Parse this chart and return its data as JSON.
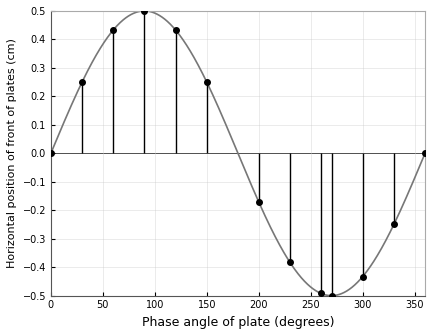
{
  "title": "",
  "xlabel": "Phase angle of plate (degrees)",
  "ylabel": "Horizontal position of front of plates (cm)",
  "amplitude": 0.5,
  "xlim": [
    0,
    360
  ],
  "ylim": [
    -0.5,
    0.5
  ],
  "xticks": [
    0,
    50,
    100,
    150,
    200,
    250,
    300,
    350
  ],
  "yticks": [
    -0.5,
    -0.4,
    -0.3,
    -0.2,
    -0.1,
    0.0,
    0.1,
    0.2,
    0.3,
    0.4,
    0.5
  ],
  "sample_angles_deg": [
    0,
    30,
    60,
    90,
    120,
    150,
    200,
    230,
    260,
    270,
    300,
    330,
    360
  ],
  "curve_color": "#777777",
  "vline_color": "#000000",
  "dot_color": "#000000",
  "dot_size": 4,
  "background_color": "#ffffff",
  "grid_color": "#cccccc",
  "xlabel_fontsize": 9,
  "ylabel_fontsize": 8,
  "tick_fontsize": 7
}
